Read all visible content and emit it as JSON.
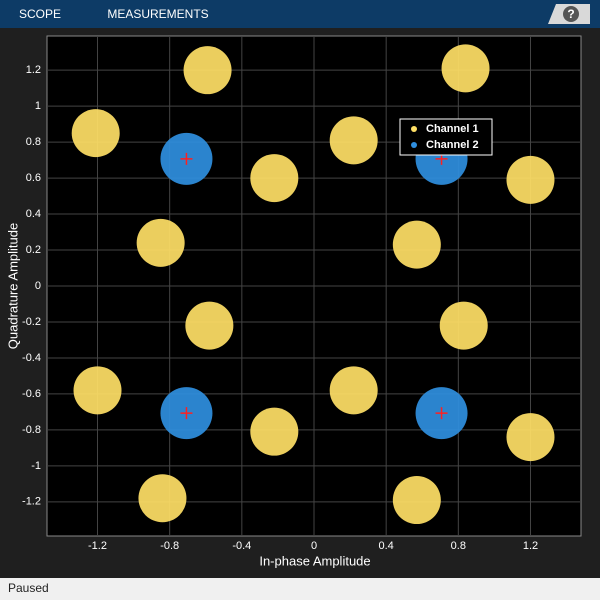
{
  "toolbar": {
    "tabs": [
      "SCOPE",
      "MEASUREMENTS"
    ],
    "help": "?"
  },
  "chart_data": {
    "type": "scatter",
    "xlabel": "In-phase Amplitude",
    "ylabel": "Quadrature Amplitude",
    "xlim": [
      -1.48,
      1.48
    ],
    "ylim": [
      -1.39,
      1.39
    ],
    "xticks": [
      -1.2,
      -0.8,
      -0.4,
      0,
      0.4,
      0.8,
      1.2
    ],
    "yticks": [
      -1.2,
      -1,
      -0.8,
      -0.6,
      -0.4,
      -0.2,
      0,
      0.2,
      0.4,
      0.6,
      0.8,
      1,
      1.2
    ],
    "grid": true,
    "legend": "upper right",
    "series": [
      {
        "name": "Channel 1",
        "color": "#ffe066",
        "x": [
          -0.59,
          0.84,
          -1.21,
          0.22,
          1.2,
          -0.22,
          -0.85,
          0.57,
          -0.58,
          0.83,
          -1.2,
          0.22,
          -0.22,
          1.2,
          -0.84,
          0.57
        ],
        "y": [
          1.2,
          1.21,
          0.85,
          0.81,
          0.59,
          0.6,
          0.24,
          0.23,
          -0.22,
          -0.22,
          -0.58,
          -0.58,
          -0.81,
          -0.84,
          -1.18,
          -1.19
        ]
      },
      {
        "name": "Channel 2",
        "color": "#2f8fe0",
        "x": [
          -0.707,
          0.707,
          -0.707,
          0.707
        ],
        "y": [
          0.707,
          0.707,
          -0.707,
          -0.707
        ]
      }
    ],
    "reference": {
      "color": "#ff2020",
      "x": [
        -0.707,
        0.707,
        -0.707,
        0.707
      ],
      "y": [
        0.707,
        0.707,
        -0.707,
        -0.707
      ]
    }
  },
  "status": "Paused"
}
